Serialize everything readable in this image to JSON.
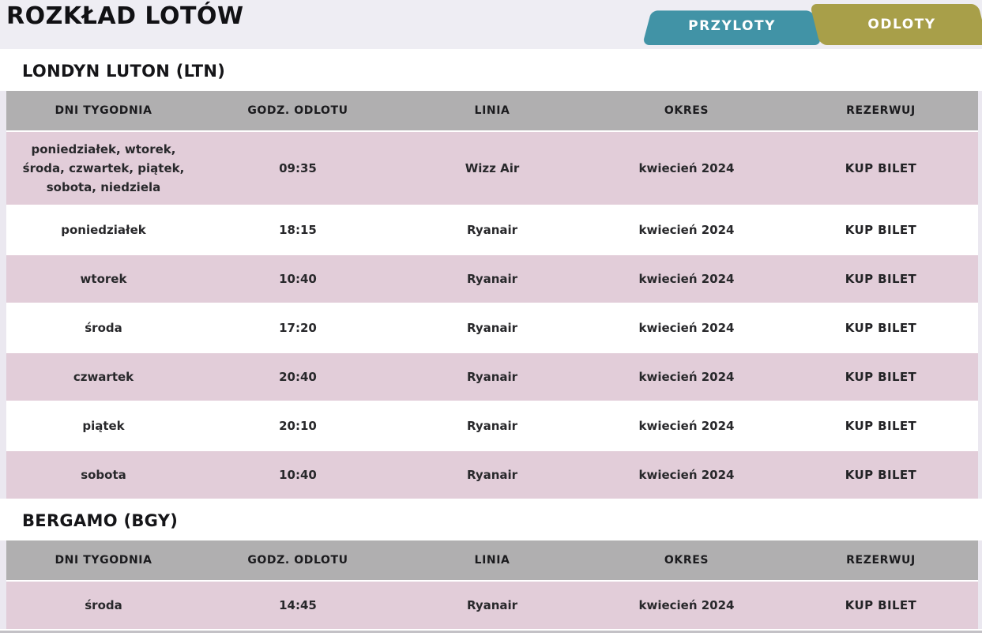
{
  "header": {
    "title": "ROZKŁAD LOTÓW",
    "tabs": [
      {
        "label": "PRZYLOTY",
        "color": "#4193a6",
        "active": false
      },
      {
        "label": "ODLOTY",
        "color": "#a89f49",
        "active": true
      }
    ]
  },
  "table": {
    "columns": [
      "DNI TYGODNIA",
      "GODZ. ODLOTU",
      "LINIA",
      "OKRES",
      "REZERWUJ"
    ]
  },
  "sections": [
    {
      "title": "LONDYN LUTON (LTN)",
      "rows": [
        {
          "days": "poniedziałek, wtorek, środa, czwartek, piątek, sobota, niedziela",
          "time": "09:35",
          "airline": "Wizz Air",
          "period": "kwiecień 2024",
          "action": "KUP BILET"
        },
        {
          "days": "poniedziałek",
          "time": "18:15",
          "airline": "Ryanair",
          "period": "kwiecień 2024",
          "action": "KUP BILET"
        },
        {
          "days": "wtorek",
          "time": "10:40",
          "airline": "Ryanair",
          "period": "kwiecień 2024",
          "action": "KUP BILET"
        },
        {
          "days": "środa",
          "time": "17:20",
          "airline": "Ryanair",
          "period": "kwiecień 2024",
          "action": "KUP BILET"
        },
        {
          "days": "czwartek",
          "time": "20:40",
          "airline": "Ryanair",
          "period": "kwiecień 2024",
          "action": "KUP BILET"
        },
        {
          "days": "piątek",
          "time": "20:10",
          "airline": "Ryanair",
          "period": "kwiecień 2024",
          "action": "KUP BILET"
        },
        {
          "days": "sobota",
          "time": "10:40",
          "airline": "Ryanair",
          "period": "kwiecień 2024",
          "action": "KUP BILET"
        }
      ]
    },
    {
      "title": "BERGAMO (BGY)",
      "rows": [
        {
          "days": "środa",
          "time": "14:45",
          "airline": "Ryanair",
          "period": "kwiecień 2024",
          "action": "KUP BILET"
        }
      ]
    }
  ],
  "colors": {
    "top_strip": "#eeedf3",
    "tab_arrivals": "#4193a6",
    "tab_departures": "#a89f49",
    "header_row": "#b0afb0",
    "row_pink": "#e2cdd9",
    "row_white": "#ffffff"
  }
}
